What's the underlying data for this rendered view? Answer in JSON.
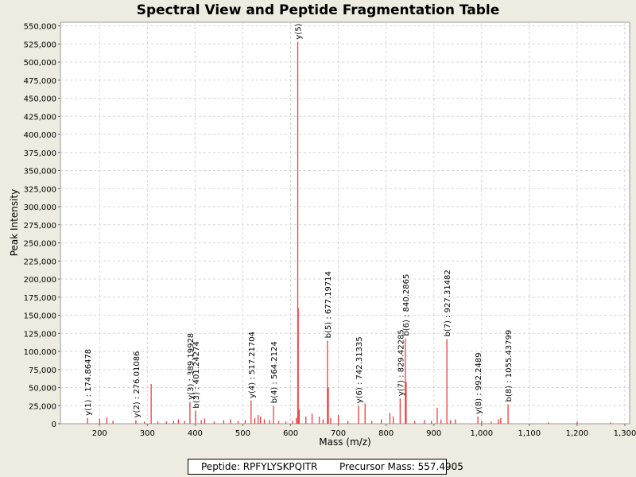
{
  "chart_data": {
    "type": "bar",
    "title": "Spectral View and Peptide Fragmentation Table",
    "xlabel": "Mass (m/z)",
    "ylabel": "Peak Intensity",
    "xlim": [
      118,
      1310
    ],
    "ylim": [
      0,
      555000
    ],
    "x_ticks": [
      {
        "value": 200,
        "label": "200"
      },
      {
        "value": 300,
        "label": "300"
      },
      {
        "value": 400,
        "label": "400"
      },
      {
        "value": 500,
        "label": "500"
      },
      {
        "value": 600,
        "label": "600"
      },
      {
        "value": 700,
        "label": "700"
      },
      {
        "value": 800,
        "label": "800"
      },
      {
        "value": 900,
        "label": "900"
      },
      {
        "value": 1000,
        "label": "1,000"
      },
      {
        "value": 1100,
        "label": "1,100"
      },
      {
        "value": 1200,
        "label": "1,200"
      },
      {
        "value": 1300,
        "label": "1,300"
      }
    ],
    "y_ticks": [
      {
        "value": 0,
        "label": "0"
      },
      {
        "value": 25000,
        "label": "25,000"
      },
      {
        "value": 50000,
        "label": "50,000"
      },
      {
        "value": 75000,
        "label": "75,000"
      },
      {
        "value": 100000,
        "label": "100,000"
      },
      {
        "value": 125000,
        "label": "125,000"
      },
      {
        "value": 150000,
        "label": "150,000"
      },
      {
        "value": 175000,
        "label": "175,000"
      },
      {
        "value": 200000,
        "label": "200,000"
      },
      {
        "value": 225000,
        "label": "225,000"
      },
      {
        "value": 250000,
        "label": "250,000"
      },
      {
        "value": 275000,
        "label": "275,000"
      },
      {
        "value": 300000,
        "label": "300,000"
      },
      {
        "value": 325000,
        "label": "325,000"
      },
      {
        "value": 350000,
        "label": "350,000"
      },
      {
        "value": 375000,
        "label": "375,000"
      },
      {
        "value": 400000,
        "label": "400,000"
      },
      {
        "value": 425000,
        "label": "425,000"
      },
      {
        "value": 450000,
        "label": "450,000"
      },
      {
        "value": 475000,
        "label": "475,000"
      },
      {
        "value": 500000,
        "label": "500,000"
      },
      {
        "value": 525000,
        "label": "525,000"
      },
      {
        "value": 550000,
        "label": "550,000"
      }
    ],
    "grid": true,
    "colors": {
      "peak": "#f03c3c",
      "grid": "#d6d6d6",
      "plot_bg": "#ffffff"
    },
    "peaks": [
      {
        "mz": 174.86,
        "intensity": 8000
      },
      {
        "mz": 200,
        "intensity": 7000
      },
      {
        "mz": 215,
        "intensity": 9000
      },
      {
        "mz": 228,
        "intensity": 4000
      },
      {
        "mz": 276,
        "intensity": 5000
      },
      {
        "mz": 294,
        "intensity": 3000
      },
      {
        "mz": 308,
        "intensity": 55000
      },
      {
        "mz": 322,
        "intensity": 3000
      },
      {
        "mz": 340,
        "intensity": 3000
      },
      {
        "mz": 355,
        "intensity": 4000
      },
      {
        "mz": 365,
        "intensity": 6000
      },
      {
        "mz": 378,
        "intensity": 4000
      },
      {
        "mz": 389.2,
        "intensity": 30000
      },
      {
        "mz": 401.2,
        "intensity": 18000
      },
      {
        "mz": 413,
        "intensity": 5000
      },
      {
        "mz": 420,
        "intensity": 7000
      },
      {
        "mz": 440,
        "intensity": 3000
      },
      {
        "mz": 460,
        "intensity": 5000
      },
      {
        "mz": 474,
        "intensity": 6000
      },
      {
        "mz": 490,
        "intensity": 4000
      },
      {
        "mz": 505,
        "intensity": 5000
      },
      {
        "mz": 517.2,
        "intensity": 32000
      },
      {
        "mz": 525,
        "intensity": 8000
      },
      {
        "mz": 532,
        "intensity": 12000
      },
      {
        "mz": 537,
        "intensity": 10000
      },
      {
        "mz": 545,
        "intensity": 6000
      },
      {
        "mz": 556,
        "intensity": 5000
      },
      {
        "mz": 564.2,
        "intensity": 25000
      },
      {
        "mz": 575,
        "intensity": 4000
      },
      {
        "mz": 590,
        "intensity": 3000
      },
      {
        "mz": 604,
        "intensity": 4000
      },
      {
        "mz": 612,
        "intensity": 8000
      },
      {
        "mz": 615,
        "intensity": 528000
      },
      {
        "mz": 616,
        "intensity": 160000
      },
      {
        "mz": 618,
        "intensity": 20000
      },
      {
        "mz": 632,
        "intensity": 10000
      },
      {
        "mz": 645,
        "intensity": 14000
      },
      {
        "mz": 660,
        "intensity": 10000
      },
      {
        "mz": 668,
        "intensity": 6000
      },
      {
        "mz": 677.2,
        "intensity": 115000
      },
      {
        "mz": 679,
        "intensity": 50000
      },
      {
        "mz": 684,
        "intensity": 8000
      },
      {
        "mz": 700,
        "intensity": 12000
      },
      {
        "mz": 720,
        "intensity": 4000
      },
      {
        "mz": 742.3,
        "intensity": 25000
      },
      {
        "mz": 756,
        "intensity": 28000
      },
      {
        "mz": 770,
        "intensity": 4000
      },
      {
        "mz": 790,
        "intensity": 6000
      },
      {
        "mz": 808,
        "intensity": 15000
      },
      {
        "mz": 815,
        "intensity": 10000
      },
      {
        "mz": 829.4,
        "intensity": 35000
      },
      {
        "mz": 840.3,
        "intensity": 118000
      },
      {
        "mz": 842,
        "intensity": 58000
      },
      {
        "mz": 860,
        "intensity": 4000
      },
      {
        "mz": 880,
        "intensity": 5000
      },
      {
        "mz": 895,
        "intensity": 4000
      },
      {
        "mz": 907,
        "intensity": 22000
      },
      {
        "mz": 915,
        "intensity": 6000
      },
      {
        "mz": 927.3,
        "intensity": 117000
      },
      {
        "mz": 935,
        "intensity": 5000
      },
      {
        "mz": 945,
        "intensity": 6000
      },
      {
        "mz": 992.2,
        "intensity": 10000
      },
      {
        "mz": 1000,
        "intensity": 4000
      },
      {
        "mz": 1020,
        "intensity": 3000
      },
      {
        "mz": 1035,
        "intensity": 6000
      },
      {
        "mz": 1040,
        "intensity": 8000
      },
      {
        "mz": 1055.4,
        "intensity": 27000
      },
      {
        "mz": 1140,
        "intensity": 2000
      },
      {
        "mz": 1200,
        "intensity": 3000
      },
      {
        "mz": 1270,
        "intensity": 2000
      }
    ],
    "annotations": [
      {
        "label": "y(1) : 174.86478",
        "mz": 174.86,
        "intensity": 8000
      },
      {
        "label": "y(2) : 276.01086",
        "mz": 276.0,
        "intensity": 5000
      },
      {
        "label": "y(3) : 389.19928",
        "mz": 389.2,
        "intensity": 30000
      },
      {
        "label": "b(3) : 401.24274",
        "mz": 401.2,
        "intensity": 18000
      },
      {
        "label": "y(4) : 517.21704",
        "mz": 517.2,
        "intensity": 32000
      },
      {
        "label": "b(4) : 564.2124",
        "mz": 564.2,
        "intensity": 25000
      },
      {
        "label": "y(5)",
        "mz": 615.0,
        "intensity": 528000
      },
      {
        "label": "b(5) : 677.19714",
        "mz": 677.2,
        "intensity": 115000
      },
      {
        "label": "y(6) : 742.31335",
        "mz": 742.3,
        "intensity": 25000
      },
      {
        "label": "y(7) : 829.42285",
        "mz": 829.4,
        "intensity": 35000
      },
      {
        "label": "b(6) : 840.2865",
        "mz": 840.3,
        "intensity": 118000
      },
      {
        "label": "b(7) : 927.31482",
        "mz": 927.3,
        "intensity": 117000
      },
      {
        "label": "y(8) : 992.2489",
        "mz": 992.2,
        "intensity": 10000
      },
      {
        "label": "b(8) : 1055.43799",
        "mz": 1055.4,
        "intensity": 27000
      }
    ]
  },
  "caption": {
    "peptide_label": "Peptide:",
    "peptide": "RPFYLYSKPQITR",
    "precursor_label": "Precursor Mass:",
    "precursor_mass": "557.4905"
  }
}
